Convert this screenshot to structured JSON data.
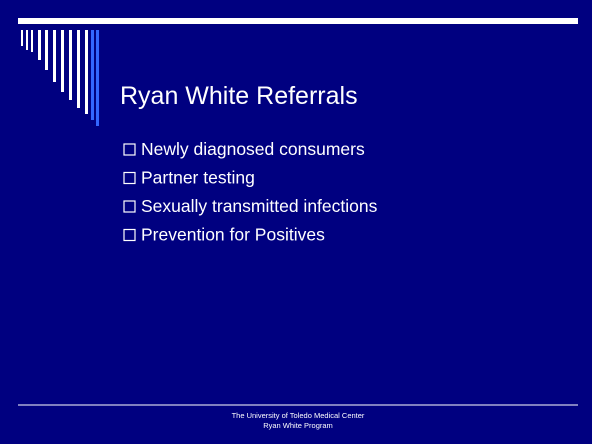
{
  "slide": {
    "title": "Ryan White Referrals",
    "bullets": [
      "Newly diagnosed consumers",
      "Partner testing",
      "Sexually transmitted infections",
      "Prevention for Positives"
    ],
    "footer": [
      "The University of Toledo Medical Center",
      "Ryan White Program"
    ]
  }
}
